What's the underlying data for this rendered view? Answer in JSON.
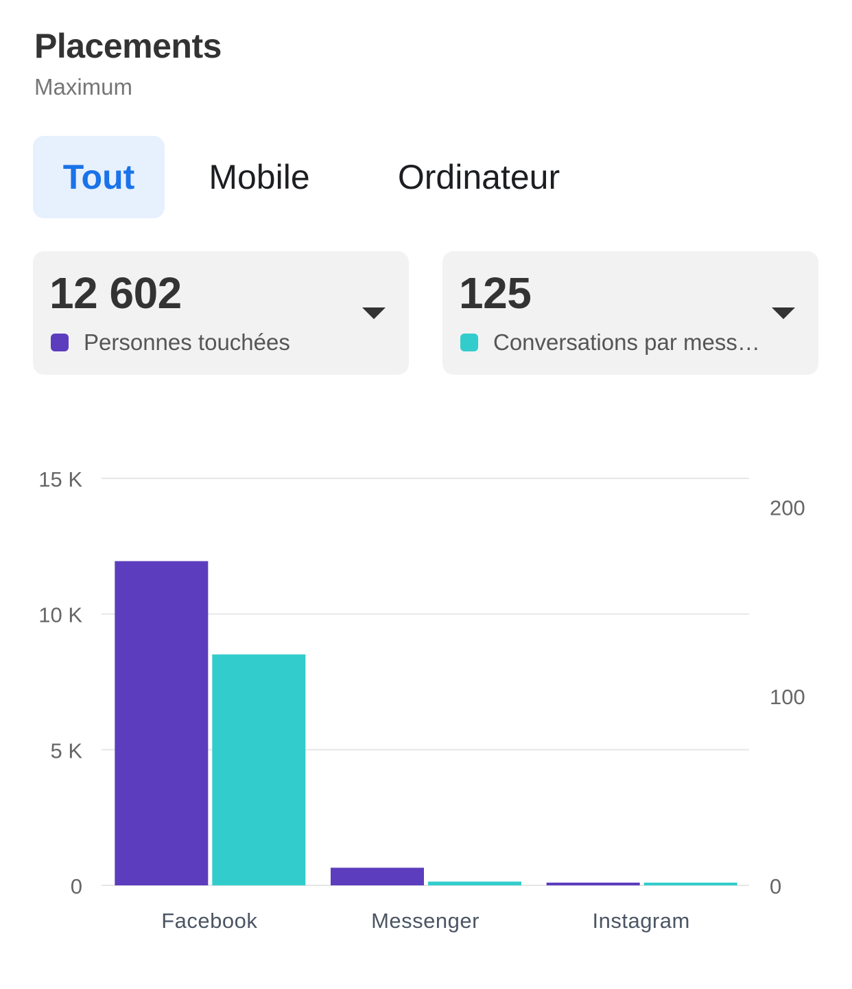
{
  "header": {
    "title": "Placements",
    "subtitle": "Maximum"
  },
  "tabs": [
    {
      "label": "Tout",
      "active": true
    },
    {
      "label": "Mobile",
      "active": false
    },
    {
      "label": "Ordinateur",
      "active": false
    }
  ],
  "metrics": [
    {
      "value": "12 602",
      "label": "Personnes touchées",
      "color": "#5c3dbd",
      "icon": "caret-down-icon"
    },
    {
      "value": "125",
      "label": "Conversations par messagerie commencées",
      "color": "#33cccc",
      "icon": "caret-down-icon"
    }
  ],
  "chart_data": {
    "type": "bar",
    "categories": [
      "Facebook",
      "Messenger",
      "Instagram"
    ],
    "series": [
      {
        "name": "Personnes touchées",
        "axis": "left",
        "color": "#5c3dbd",
        "values": [
          11950,
          650,
          50
        ]
      },
      {
        "name": "Conversations par messagerie commencées",
        "axis": "right",
        "color": "#33cccc",
        "values": [
          122,
          2,
          1
        ]
      }
    ],
    "y_left": {
      "ylim": [
        0,
        15000
      ],
      "ticks": [
        0,
        5000,
        10000,
        15000
      ],
      "tick_labels": [
        "0",
        "5 K",
        "10 K",
        "15 K"
      ]
    },
    "y_right": {
      "ylim": [
        0,
        215
      ],
      "ticks": [
        0,
        100,
        200
      ],
      "tick_labels": [
        "0",
        "100",
        "200"
      ]
    },
    "grid": true,
    "legend": "none"
  }
}
